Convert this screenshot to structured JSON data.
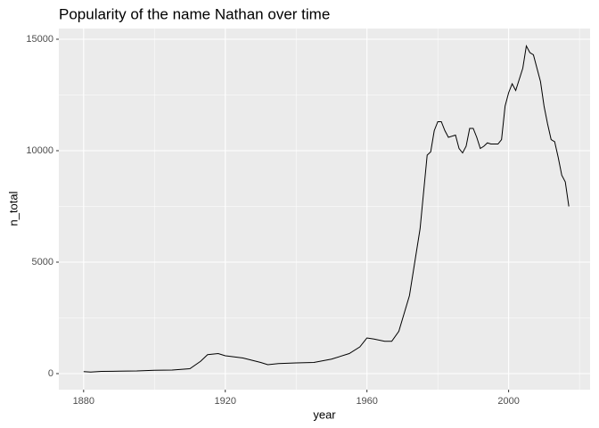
{
  "chart_data": {
    "type": "line",
    "title": "Popularity of the name Nathan over time",
    "x_label": "year",
    "y_label": "n_total",
    "x": [
      1880,
      1882,
      1885,
      1890,
      1895,
      1900,
      1905,
      1910,
      1913,
      1915,
      1918,
      1920,
      1925,
      1930,
      1932,
      1935,
      1940,
      1945,
      1950,
      1955,
      1958,
      1960,
      1962,
      1965,
      1967,
      1969,
      1972,
      1975,
      1977,
      1978,
      1979,
      1980,
      1981,
      1982,
      1983,
      1985,
      1986,
      1987,
      1988,
      1989,
      1990,
      1991,
      1992,
      1993,
      1994,
      1995,
      1997,
      1998,
      1999,
      2000,
      2001,
      2002,
      2003,
      2004,
      2005,
      2006,
      2007,
      2008,
      2009,
      2010,
      2011,
      2012,
      2013,
      2014,
      2015,
      2016,
      2017
    ],
    "series": [
      {
        "name": "n_total",
        "color": "#000000",
        "values": [
          90,
          70,
          100,
          110,
          120,
          150,
          160,
          220,
          550,
          850,
          900,
          800,
          700,
          500,
          400,
          450,
          480,
          500,
          650,
          900,
          1200,
          1600,
          1550,
          1450,
          1450,
          1900,
          3500,
          6500,
          9800,
          9950,
          10900,
          11300,
          11300,
          10900,
          10600,
          10700,
          10100,
          9900,
          10200,
          11000,
          11000,
          10600,
          10100,
          10200,
          10350,
          10300,
          10300,
          10500,
          12000,
          12600,
          13000,
          12700,
          13200,
          13700,
          14700,
          14400,
          14300,
          13700,
          13100,
          12000,
          11200,
          10500,
          10400,
          9700,
          8900,
          8600,
          7500
        ]
      }
    ],
    "xlim": [
      1873,
      2023
    ],
    "xticks": [
      1880,
      1920,
      1960,
      2000
    ],
    "xminor": [
      1900,
      1940,
      1980,
      2020
    ],
    "ylim": [
      -720,
      15480
    ],
    "yticks": [
      0,
      5000,
      10000,
      15000
    ],
    "yminor": [
      2500,
      7500,
      12500
    ],
    "grid": true,
    "panel_color": "#ebebeb"
  }
}
